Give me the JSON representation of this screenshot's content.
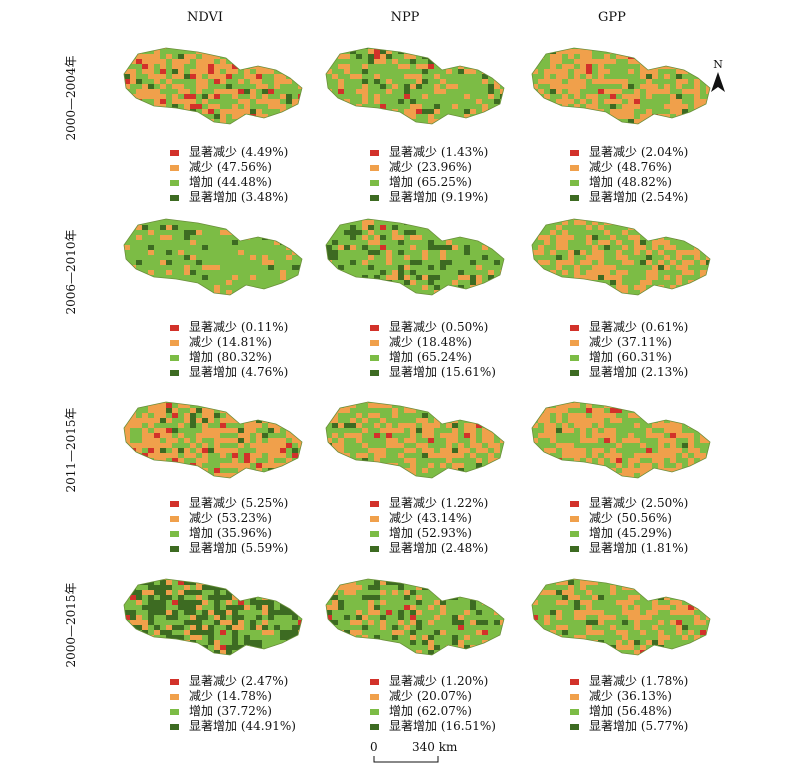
{
  "columns": [
    "NDVI",
    "NPP",
    "GPP"
  ],
  "rows": [
    "2000—2004年",
    "2006—2010年",
    "2011—2015年",
    "2000—2015年"
  ],
  "legend_colors": {
    "sig_decrease": "#d2312a",
    "decrease": "#f0a04b",
    "increase": "#7cbc45",
    "sig_increase": "#3d6b22"
  },
  "categories": [
    "显著减少",
    "减少",
    "增加",
    "显著增加"
  ],
  "panels": [
    [
      {
        "values": [
          "(4.49%)",
          "(47.56%)",
          "(44.48%)",
          "(3.48%)"
        ]
      },
      {
        "values": [
          "(1.43%)",
          "(23.96%)",
          "(65.25%)",
          "(9.19%)"
        ]
      },
      {
        "values": [
          "(2.04%)",
          "(48.76%)",
          "(48.82%)",
          "(2.54%)"
        ]
      }
    ],
    [
      {
        "values": [
          "(0.11%)",
          "(14.81%)",
          "(80.32%)",
          "(4.76%)"
        ]
      },
      {
        "values": [
          "(0.50%)",
          "(18.48%)",
          "(65.24%)",
          "(15.61%)"
        ]
      },
      {
        "values": [
          "(0.61%)",
          "(37.11%)",
          "(60.31%)",
          "(2.13%)"
        ]
      }
    ],
    [
      {
        "values": [
          "(5.25%)",
          "(53.23%)",
          "(35.96%)",
          "(5.59%)"
        ]
      },
      {
        "values": [
          "(1.22%)",
          "(43.14%)",
          "(52.93%)",
          "(2.48%)"
        ]
      },
      {
        "values": [
          "(2.50%)",
          "(50.56%)",
          "(45.29%)",
          "(1.81%)"
        ]
      }
    ],
    [
      {
        "values": [
          "(2.47%)",
          "(14.78%)",
          "(37.72%)",
          "(44.91%)"
        ]
      },
      {
        "values": [
          "(1.20%)",
          "(20.07%)",
          "(62.07%)",
          "(16.51%)"
        ]
      },
      {
        "values": [
          "(1.78%)",
          "(36.13%)",
          "(56.48%)",
          "(5.77%)"
        ]
      }
    ]
  ],
  "north_label": "N",
  "scale": {
    "start": "0",
    "end": "340 km"
  }
}
